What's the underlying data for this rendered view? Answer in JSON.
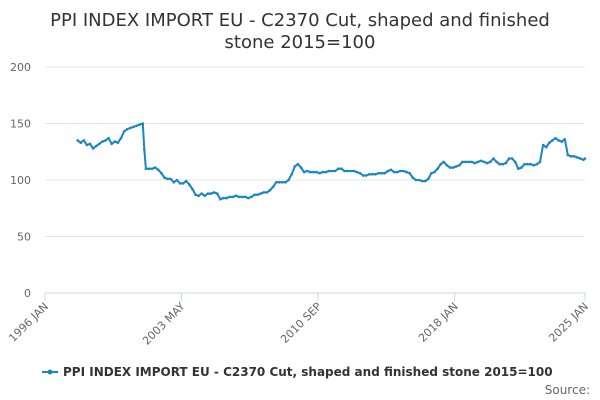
{
  "chart_data": {
    "type": "line",
    "title_line1": "PPI INDEX IMPORT EU - C2370 Cut, shaped and finished",
    "title_line2": "stone 2015=100",
    "xlabel": "",
    "ylabel": "",
    "x_tick_labels": [
      "1996 JAN",
      "2003 MAY",
      "2010 SEP",
      "2018 JAN",
      "2025 JAN"
    ],
    "x_tick_dates": [
      "1996-01",
      "2003-05",
      "2010-09",
      "2018-01",
      "2025-01"
    ],
    "xlim": [
      "1996-01",
      "2025-01"
    ],
    "ylim": [
      0,
      200
    ],
    "y_ticks": [
      0,
      50,
      100,
      150,
      200
    ],
    "grid": "horizontal",
    "legend_position": "bottom",
    "series": [
      {
        "name": "PPI INDEX IMPORT EU - C2370 Cut, shaped and finished stone 2015=100",
        "color": "#1a85c0",
        "points": [
          [
            "1997-10",
            135
          ],
          [
            "1997-12",
            133
          ],
          [
            "1998-02",
            135
          ],
          [
            "1998-04",
            131
          ],
          [
            "1998-06",
            132
          ],
          [
            "1998-08",
            128
          ],
          [
            "1998-10",
            130
          ],
          [
            "1998-12",
            132
          ],
          [
            "1999-02",
            134
          ],
          [
            "1999-04",
            135
          ],
          [
            "1999-06",
            137
          ],
          [
            "1999-08",
            132
          ],
          [
            "1999-10",
            134
          ],
          [
            "1999-12",
            133
          ],
          [
            "2000-02",
            137
          ],
          [
            "2000-04",
            143
          ],
          [
            "2000-06",
            145
          ],
          [
            "2000-08",
            146
          ],
          [
            "2000-10",
            147
          ],
          [
            "2000-12",
            148
          ],
          [
            "2001-02",
            149
          ],
          [
            "2001-04",
            150
          ],
          [
            "2001-05",
            127
          ],
          [
            "2001-06",
            110
          ],
          [
            "2001-08",
            110
          ],
          [
            "2001-10",
            110
          ],
          [
            "2001-12",
            111
          ],
          [
            "2002-02",
            109
          ],
          [
            "2002-04",
            106
          ],
          [
            "2002-06",
            102
          ],
          [
            "2002-08",
            101
          ],
          [
            "2002-10",
            101
          ],
          [
            "2002-12",
            98
          ],
          [
            "2003-02",
            100
          ],
          [
            "2003-04",
            97
          ],
          [
            "2003-06",
            97
          ],
          [
            "2003-08",
            99
          ],
          [
            "2003-10",
            96
          ],
          [
            "2003-12",
            92
          ],
          [
            "2004-02",
            87
          ],
          [
            "2004-04",
            86
          ],
          [
            "2004-06",
            88
          ],
          [
            "2004-08",
            86
          ],
          [
            "2004-10",
            88
          ],
          [
            "2004-12",
            88
          ],
          [
            "2005-02",
            89
          ],
          [
            "2005-04",
            88
          ],
          [
            "2005-06",
            83
          ],
          [
            "2005-08",
            84
          ],
          [
            "2005-10",
            84
          ],
          [
            "2005-12",
            85
          ],
          [
            "2006-02",
            85
          ],
          [
            "2006-04",
            86
          ],
          [
            "2006-06",
            85
          ],
          [
            "2006-08",
            85
          ],
          [
            "2006-10",
            85
          ],
          [
            "2006-12",
            84
          ],
          [
            "2007-02",
            85
          ],
          [
            "2007-04",
            87
          ],
          [
            "2007-06",
            87
          ],
          [
            "2007-08",
            88
          ],
          [
            "2007-10",
            89
          ],
          [
            "2007-12",
            89
          ],
          [
            "2008-02",
            91
          ],
          [
            "2008-04",
            94
          ],
          [
            "2008-06",
            98
          ],
          [
            "2008-08",
            98
          ],
          [
            "2008-10",
            98
          ],
          [
            "2008-12",
            98
          ],
          [
            "2009-02",
            100
          ],
          [
            "2009-04",
            105
          ],
          [
            "2009-06",
            112
          ],
          [
            "2009-08",
            114
          ],
          [
            "2009-10",
            111
          ],
          [
            "2009-12",
            107
          ],
          [
            "2010-02",
            108
          ],
          [
            "2010-04",
            107
          ],
          [
            "2010-06",
            107
          ],
          [
            "2010-08",
            107
          ],
          [
            "2010-10",
            106
          ],
          [
            "2010-12",
            107
          ],
          [
            "2011-02",
            107
          ],
          [
            "2011-04",
            108
          ],
          [
            "2011-06",
            108
          ],
          [
            "2011-08",
            108
          ],
          [
            "2011-10",
            110
          ],
          [
            "2011-12",
            110
          ],
          [
            "2012-02",
            108
          ],
          [
            "2012-04",
            108
          ],
          [
            "2012-06",
            108
          ],
          [
            "2012-08",
            108
          ],
          [
            "2012-10",
            107
          ],
          [
            "2012-12",
            106
          ],
          [
            "2013-02",
            104
          ],
          [
            "2013-04",
            104
          ],
          [
            "2013-06",
            105
          ],
          [
            "2013-08",
            105
          ],
          [
            "2013-10",
            105
          ],
          [
            "2013-12",
            106
          ],
          [
            "2014-02",
            106
          ],
          [
            "2014-04",
            106
          ],
          [
            "2014-06",
            108
          ],
          [
            "2014-08",
            109
          ],
          [
            "2014-10",
            107
          ],
          [
            "2014-12",
            107
          ],
          [
            "2015-02",
            108
          ],
          [
            "2015-04",
            108
          ],
          [
            "2015-06",
            107
          ],
          [
            "2015-08",
            106
          ],
          [
            "2015-10",
            102
          ],
          [
            "2015-12",
            100
          ],
          [
            "2016-02",
            100
          ],
          [
            "2016-04",
            99
          ],
          [
            "2016-06",
            99
          ],
          [
            "2016-08",
            101
          ],
          [
            "2016-10",
            106
          ],
          [
            "2016-12",
            107
          ],
          [
            "2017-02",
            110
          ],
          [
            "2017-04",
            114
          ],
          [
            "2017-06",
            116
          ],
          [
            "2017-08",
            113
          ],
          [
            "2017-10",
            111
          ],
          [
            "2017-12",
            111
          ],
          [
            "2018-02",
            112
          ],
          [
            "2018-04",
            113
          ],
          [
            "2018-06",
            116
          ],
          [
            "2018-08",
            116
          ],
          [
            "2018-10",
            116
          ],
          [
            "2018-12",
            116
          ],
          [
            "2019-02",
            115
          ],
          [
            "2019-04",
            116
          ],
          [
            "2019-06",
            117
          ],
          [
            "2019-08",
            116
          ],
          [
            "2019-10",
            115
          ],
          [
            "2019-12",
            116
          ],
          [
            "2020-02",
            119
          ],
          [
            "2020-04",
            116
          ],
          [
            "2020-06",
            114
          ],
          [
            "2020-08",
            114
          ],
          [
            "2020-10",
            115
          ],
          [
            "2020-12",
            119
          ],
          [
            "2021-02",
            119
          ],
          [
            "2021-04",
            116
          ],
          [
            "2021-06",
            110
          ],
          [
            "2021-08",
            111
          ],
          [
            "2021-10",
            114
          ],
          [
            "2021-12",
            114
          ],
          [
            "2022-02",
            114
          ],
          [
            "2022-04",
            113
          ],
          [
            "2022-06",
            114
          ],
          [
            "2022-08",
            116
          ],
          [
            "2022-10",
            131
          ],
          [
            "2022-12",
            129
          ],
          [
            "2023-02",
            133
          ],
          [
            "2023-04",
            135
          ],
          [
            "2023-06",
            137
          ],
          [
            "2023-08",
            135
          ],
          [
            "2023-10",
            134
          ],
          [
            "2023-12",
            136
          ],
          [
            "2024-02",
            122
          ],
          [
            "2024-04",
            121
          ],
          [
            "2024-06",
            121
          ],
          [
            "2024-08",
            120
          ],
          [
            "2024-10",
            119
          ],
          [
            "2024-12",
            118
          ],
          [
            "2025-01",
            119
          ]
        ]
      }
    ],
    "credit": "Source:"
  }
}
